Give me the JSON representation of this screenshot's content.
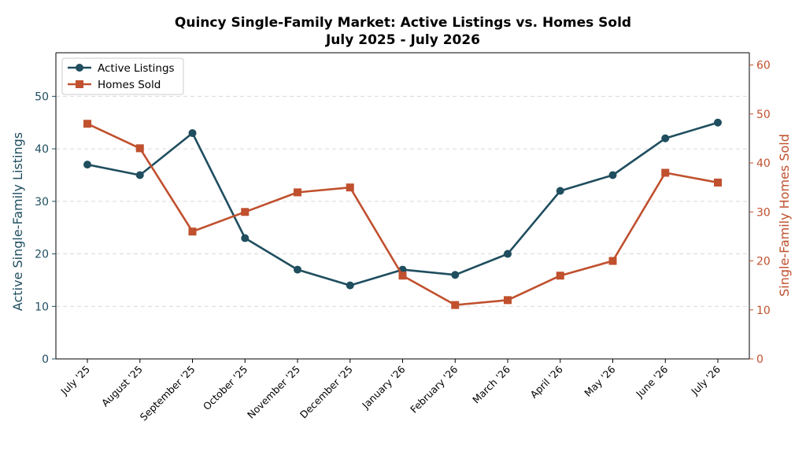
{
  "chart_data": {
    "type": "line",
    "title": "Quincy Single-Family Market: Active Listings vs. Homes Sold",
    "subtitle": "July 2025 - July 2026",
    "categories": [
      "July '25",
      "August '25",
      "September '25",
      "October '25",
      "November '25",
      "December '25",
      "January '26",
      "February '26",
      "March '26",
      "April '26",
      "May '26",
      "June '26",
      "July '26"
    ],
    "series": [
      {
        "name": "Active Listings",
        "axis": "left",
        "marker": "circle",
        "color": "#1f4e5f",
        "values": [
          37,
          35,
          43,
          23,
          17,
          14,
          17,
          16,
          20,
          32,
          35,
          42,
          45
        ]
      },
      {
        "name": "Homes Sold",
        "axis": "right",
        "marker": "square",
        "color": "#c0502e",
        "values": [
          48,
          43,
          26,
          30,
          34,
          35,
          17,
          11,
          12,
          17,
          20,
          38,
          36
        ]
      }
    ],
    "ylabel_left": "Active Single-Family Listings",
    "ylabel_right": "Single-Family Homes Sold",
    "ylim_left": [
      0,
      58.3
    ],
    "ylim_right": [
      0,
      62.5
    ],
    "yticks_left": [
      0,
      10,
      20,
      30,
      40,
      50
    ],
    "yticks_right": [
      0,
      10,
      20,
      30,
      40,
      50,
      60
    ],
    "grid": "horizontal dashed",
    "legend_position": "top-left"
  }
}
